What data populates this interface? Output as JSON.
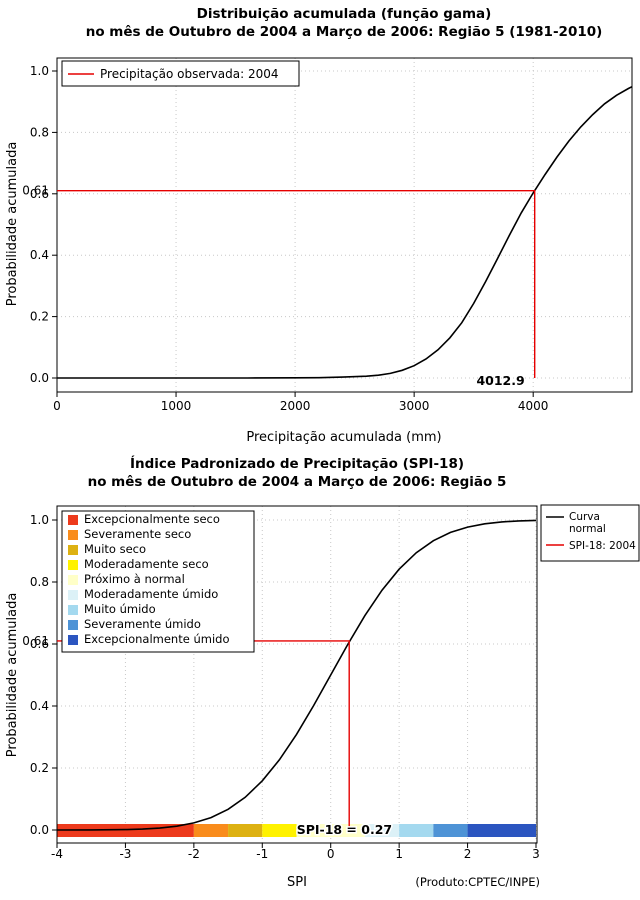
{
  "colors": {
    "curve": "#000000",
    "ref": "#E60000",
    "grid": "#C8C8C8"
  },
  "chart_data": [
    {
      "type": "line",
      "title_line1": "Distribuição acumulada (função gama)",
      "title_line2": "no mês de Outubro de 2004 a Março de 2006: Região 5 (1981-2010)",
      "xlabel": "Precipitação acumulada (mm)",
      "ylabel": "Probabilidade acumulada",
      "xlim": [
        0,
        4830
      ],
      "ylim": [
        0,
        1
      ],
      "xticks": [
        "0",
        "1000",
        "2000",
        "3000",
        "4000"
      ],
      "yticks": [
        "0.0",
        "0.2",
        "0.4",
        "0.6",
        "0.8",
        "1.0"
      ],
      "grid": true,
      "legend": {
        "position": "top-left",
        "items": [
          {
            "color": "#E60000",
            "lines": [
              "Precipitação observada: 2004"
            ]
          }
        ]
      },
      "ref": {
        "x": 4012.9,
        "y": 0.61,
        "x_label": "4012.9",
        "y_label": "0.61"
      },
      "series": [
        {
          "name": "Distribuição gama acumulada",
          "points": [
            [
              0,
              0
            ],
            [
              400,
              0
            ],
            [
              800,
              0
            ],
            [
              1200,
              0
            ],
            [
              1600,
              0
            ],
            [
              2000,
              0.0005
            ],
            [
              2200,
              0.001
            ],
            [
              2400,
              0.003
            ],
            [
              2600,
              0.006
            ],
            [
              2700,
              0.009
            ],
            [
              2800,
              0.015
            ],
            [
              2900,
              0.025
            ],
            [
              3000,
              0.04
            ],
            [
              3100,
              0.062
            ],
            [
              3200,
              0.092
            ],
            [
              3300,
              0.131
            ],
            [
              3400,
              0.18
            ],
            [
              3500,
              0.243
            ],
            [
              3600,
              0.314
            ],
            [
              3700,
              0.389
            ],
            [
              3800,
              0.465
            ],
            [
              3900,
              0.538
            ],
            [
              4000,
              0.603
            ],
            [
              4100,
              0.663
            ],
            [
              4200,
              0.72
            ],
            [
              4300,
              0.772
            ],
            [
              4400,
              0.818
            ],
            [
              4500,
              0.858
            ],
            [
              4600,
              0.893
            ],
            [
              4700,
              0.921
            ],
            [
              4800,
              0.943
            ],
            [
              4830,
              0.949
            ]
          ]
        }
      ]
    },
    {
      "type": "line",
      "title_line1": "Índice Padronizado de Precipitação (SPI-18)",
      "title_line2": "no mês de Outubro de 2004 a Março de 2006: Região 5",
      "xlabel": "SPI",
      "ylabel": "Probabilidade acumulada",
      "xlim": [
        -4,
        3
      ],
      "ylim": [
        0,
        1
      ],
      "xticks": [
        "-4",
        "-3",
        "-2",
        "-1",
        "0",
        "1",
        "2",
        "3"
      ],
      "yticks": [
        "0.0",
        "0.2",
        "0.4",
        "0.6",
        "0.8",
        "1.0"
      ],
      "grid": true,
      "legend_left": {
        "position": "top-left",
        "items": [
          {
            "color": "#ED3A1C",
            "label": "Excepcionalmente seco"
          },
          {
            "color": "#F98C1C",
            "label": "Severamente seco"
          },
          {
            "color": "#DDB112",
            "label": "Muito seco"
          },
          {
            "color": "#FFF200",
            "label": "Moderadamente seco"
          },
          {
            "color": "#FFFFC8",
            "label": "Próximo à normal"
          },
          {
            "color": "#DCF1F7",
            "label": "Moderadamente úmido"
          },
          {
            "color": "#A4D9EF",
            "label": "Muito úmido"
          },
          {
            "color": "#4E93D6",
            "label": "Severamente úmido"
          },
          {
            "color": "#2B55C0",
            "label": "Excepcionalmente úmido"
          }
        ]
      },
      "legend_right": {
        "position": "top-right",
        "items": [
          {
            "color": "#000000",
            "lines": [
              "Curva",
              "normal"
            ]
          },
          {
            "color": "#E60000",
            "lines": [
              "SPI-18: 2004"
            ]
          }
        ]
      },
      "ref": {
        "x": 0.27,
        "y": 0.61,
        "y_label": "0.61"
      },
      "annotation": {
        "text": "SPI-18 = 0.27",
        "x": 0.2
      },
      "colorbar": [
        {
          "from": -4,
          "to": -2,
          "color": "#ED3A1C"
        },
        {
          "from": -2,
          "to": -1.5,
          "color": "#F98C1C"
        },
        {
          "from": -1.5,
          "to": -1,
          "color": "#DDB112"
        },
        {
          "from": -1,
          "to": -0.5,
          "color": "#FFF200"
        },
        {
          "from": -0.5,
          "to": 0.5,
          "color": "#FFFFC8"
        },
        {
          "from": 0.5,
          "to": 1,
          "color": "#DCF1F7"
        },
        {
          "from": 1,
          "to": 1.5,
          "color": "#A4D9EF"
        },
        {
          "from": 1.5,
          "to": 2,
          "color": "#4E93D6"
        },
        {
          "from": 2,
          "to": 3,
          "color": "#2B55C0"
        }
      ],
      "credit": "(Produto:CPTEC/INPE)",
      "series": [
        {
          "name": "Curva normal",
          "points": [
            [
              -4,
              0.0
            ],
            [
              -3.5,
              0.0002
            ],
            [
              -3,
              0.0013
            ],
            [
              -2.75,
              0.003
            ],
            [
              -2.5,
              0.0062
            ],
            [
              -2.25,
              0.0122
            ],
            [
              -2,
              0.0228
            ],
            [
              -1.75,
              0.0401
            ],
            [
              -1.5,
              0.0668
            ],
            [
              -1.25,
              0.1056
            ],
            [
              -1,
              0.1587
            ],
            [
              -0.75,
              0.2266
            ],
            [
              -0.5,
              0.3085
            ],
            [
              -0.25,
              0.4013
            ],
            [
              0,
              0.5
            ],
            [
              0.25,
              0.5987
            ],
            [
              0.5,
              0.6915
            ],
            [
              0.75,
              0.7734
            ],
            [
              1,
              0.8413
            ],
            [
              1.25,
              0.8944
            ],
            [
              1.5,
              0.9332
            ],
            [
              1.75,
              0.9599
            ],
            [
              2,
              0.9772
            ],
            [
              2.25,
              0.9878
            ],
            [
              2.5,
              0.9938
            ],
            [
              2.75,
              0.997
            ],
            [
              3,
              0.9987
            ]
          ]
        }
      ]
    }
  ]
}
